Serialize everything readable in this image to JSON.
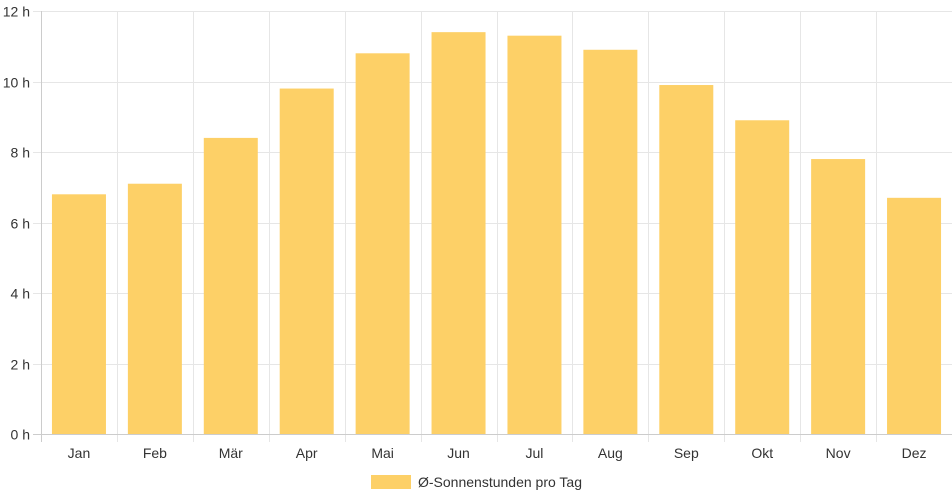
{
  "chart_data": {
    "type": "bar",
    "categories": [
      "Jan",
      "Feb",
      "Mär",
      "Apr",
      "Mai",
      "Jun",
      "Jul",
      "Aug",
      "Sep",
      "Okt",
      "Nov",
      "Dez"
    ],
    "series": [
      {
        "name": "Ø-Sonnenstunden pro Tag",
        "values": [
          6.8,
          7.1,
          8.4,
          9.8,
          10.8,
          11.4,
          11.3,
          10.9,
          9.9,
          8.9,
          7.8,
          6.7
        ],
        "color": "#fdd067"
      }
    ],
    "y_ticks": [
      "0 h",
      "2 h",
      "4 h",
      "6 h",
      "8 h",
      "10 h",
      "12 h"
    ],
    "ylim": [
      0,
      12
    ],
    "grid": true,
    "legend": "bottom-center"
  }
}
